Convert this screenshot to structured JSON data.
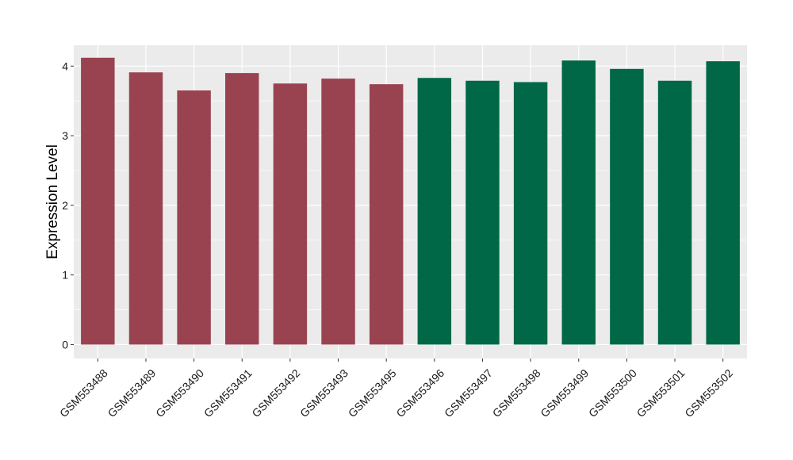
{
  "chart_data": {
    "type": "bar",
    "categories": [
      "GSM553488",
      "GSM553489",
      "GSM553490",
      "GSM553491",
      "GSM553492",
      "GSM553493",
      "GSM553495",
      "GSM553496",
      "GSM553497",
      "GSM553498",
      "GSM553499",
      "GSM553500",
      "GSM553501",
      "GSM553502"
    ],
    "values": [
      4.12,
      3.91,
      3.65,
      3.9,
      3.75,
      3.82,
      3.74,
      3.83,
      3.79,
      3.77,
      4.08,
      3.96,
      3.79,
      4.07
    ],
    "group": [
      1,
      1,
      1,
      1,
      1,
      1,
      1,
      2,
      2,
      2,
      2,
      2,
      2,
      2
    ],
    "group_colors": {
      "1": "#9a4350",
      "2": "#006846"
    },
    "title": "",
    "xlabel": "",
    "ylabel": "Expression Level",
    "ylim": [
      -0.2,
      4.3
    ],
    "yticks": [
      0,
      1,
      2,
      3,
      4
    ],
    "grid": true,
    "panel_background": "#ebebeb",
    "legend": "none"
  }
}
